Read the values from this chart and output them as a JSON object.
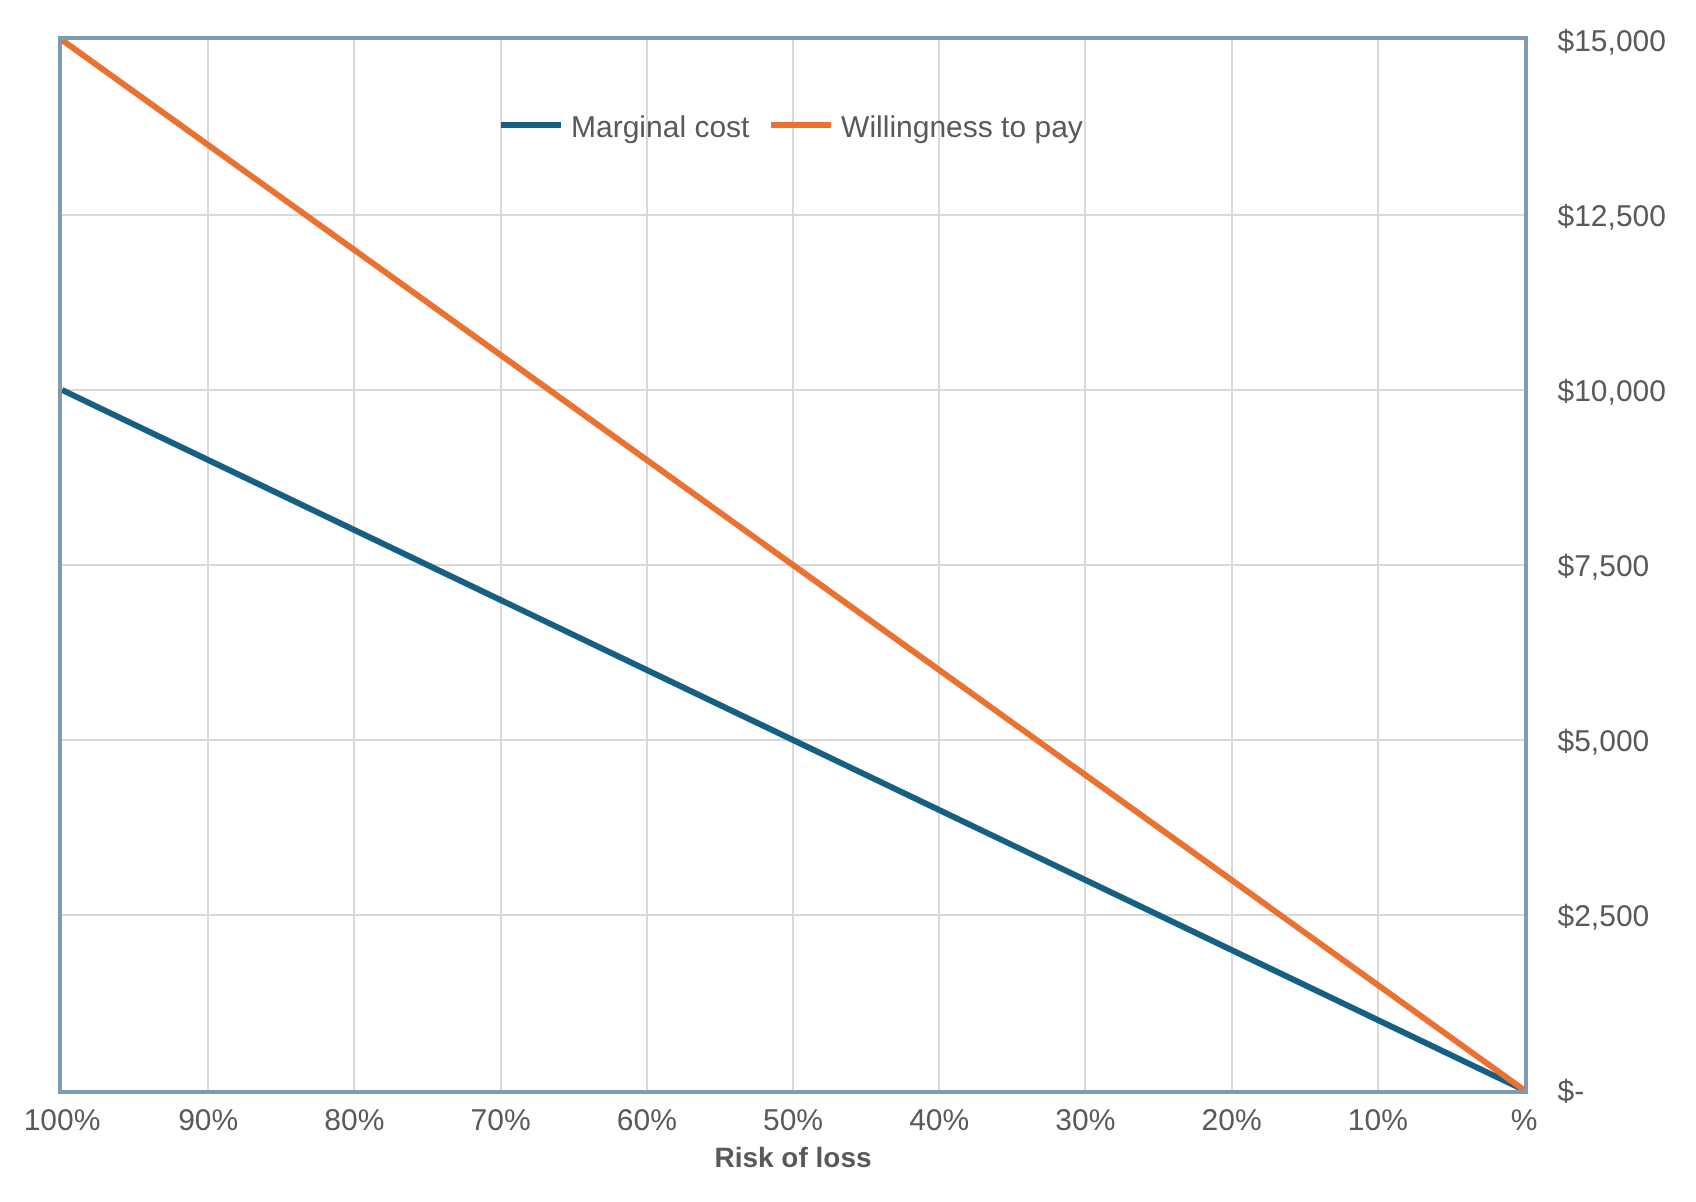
{
  "chart_data": {
    "type": "line",
    "xlabel": "Risk of loss",
    "x": [
      100,
      90,
      80,
      70,
      60,
      50,
      40,
      30,
      20,
      10,
      0
    ],
    "series": [
      {
        "name": "Marginal cost",
        "color": "#156082",
        "values": [
          10000,
          9000,
          8000,
          7000,
          6000,
          5000,
          4000,
          3000,
          2000,
          1000,
          0
        ]
      },
      {
        "name": "Willingness to pay",
        "color": "#e97132",
        "values": [
          15000,
          13500,
          12000,
          10500,
          9000,
          7500,
          6000,
          4500,
          3000,
          1500,
          0
        ]
      }
    ],
    "xlim": [
      100,
      0
    ],
    "xticks": [
      {
        "value": 100,
        "label": "100%"
      },
      {
        "value": 90,
        "label": "90%"
      },
      {
        "value": 80,
        "label": "80%"
      },
      {
        "value": 70,
        "label": "70%"
      },
      {
        "value": 60,
        "label": "60%"
      },
      {
        "value": 50,
        "label": "50%"
      },
      {
        "value": 40,
        "label": "40%"
      },
      {
        "value": 30,
        "label": "30%"
      },
      {
        "value": 20,
        "label": "20%"
      },
      {
        "value": 10,
        "label": "10%"
      },
      {
        "value": 0,
        "label": "%"
      }
    ],
    "ylim": [
      0,
      15000
    ],
    "yticks": [
      {
        "value": 0,
        "label": "$-"
      },
      {
        "value": 2500,
        "label": "$2,500"
      },
      {
        "value": 5000,
        "label": "$5,000"
      },
      {
        "value": 7500,
        "label": "$7,500"
      },
      {
        "value": 10000,
        "label": "$10,000"
      },
      {
        "value": 12500,
        "label": "$12,500"
      },
      {
        "value": 15000,
        "label": "$15,000"
      }
    ],
    "grid": true,
    "legend": "top",
    "marker": "none",
    "line_style": "solid"
  }
}
